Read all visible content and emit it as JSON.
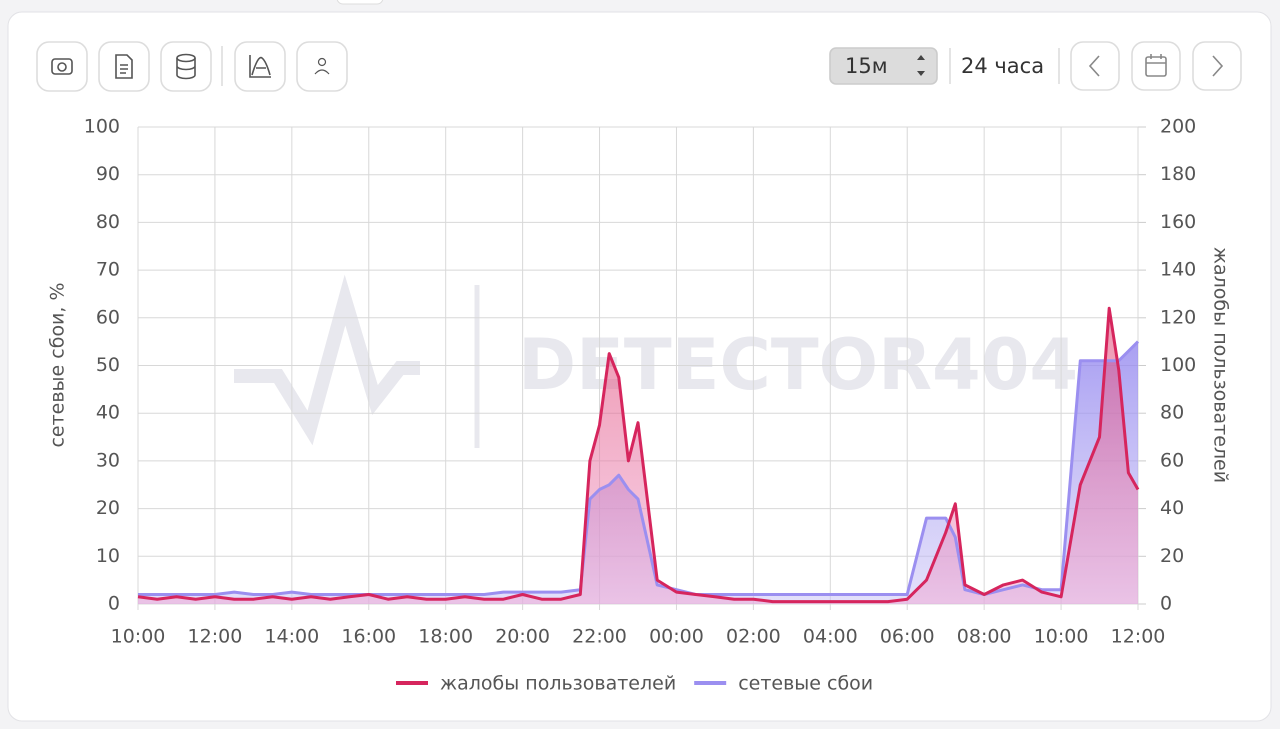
{
  "toolbar": {
    "interval": "15м",
    "range": "24 часа"
  },
  "watermark": "DETECTOR404",
  "chart_data": {
    "type": "line",
    "y_label": "сетевые сбои, %",
    "y2_label": "жалобы пользователей",
    "x": [
      0,
      0.5,
      1,
      1.5,
      2,
      2.5,
      3,
      3.5,
      4,
      4.5,
      5,
      5.5,
      6,
      6.5,
      7,
      7.5,
      8,
      8.5,
      9,
      9.5,
      10,
      10.5,
      11,
      11.5,
      11.75,
      12,
      12.25,
      12.5,
      12.75,
      13,
      13.5,
      14,
      14.5,
      15,
      15.5,
      16,
      16.5,
      17,
      17.5,
      18,
      18.5,
      19,
      19.5,
      20,
      20.5,
      21,
      21.25,
      21.5,
      22,
      22.5,
      23,
      23.5,
      24,
      24.5,
      25,
      25.25,
      25.5,
      25.75,
      26
    ],
    "xlim": [
      0,
      26
    ],
    "xticks": [
      {
        "value": 0,
        "label": "10:00"
      },
      {
        "value": 2,
        "label": "12:00"
      },
      {
        "value": 4,
        "label": "14:00"
      },
      {
        "value": 6,
        "label": "16:00"
      },
      {
        "value": 8,
        "label": "18:00"
      },
      {
        "value": 10,
        "label": "20:00"
      },
      {
        "value": 12,
        "label": "22:00"
      },
      {
        "value": 14,
        "label": "00:00"
      },
      {
        "value": 16,
        "label": "02:00"
      },
      {
        "value": 18,
        "label": "04:00"
      },
      {
        "value": 20,
        "label": "06:00"
      },
      {
        "value": 22,
        "label": "08:00"
      },
      {
        "value": 24,
        "label": "10:00"
      },
      {
        "value": 26,
        "label": "12:00"
      }
    ],
    "ylim": [
      0,
      100
    ],
    "yticks": [
      0,
      10,
      20,
      30,
      40,
      50,
      60,
      70,
      80,
      90,
      100
    ],
    "y2lim": [
      0,
      200
    ],
    "y2ticks": [
      0,
      20,
      40,
      60,
      80,
      100,
      120,
      140,
      160,
      180,
      200
    ],
    "grid": true,
    "series": [
      {
        "name": "жалобы пользователей",
        "color": "#d6255d",
        "axis": "y2",
        "values": [
          3,
          2,
          3,
          2,
          3,
          2,
          2,
          3,
          2,
          3,
          2,
          3,
          4,
          2,
          3,
          2,
          2,
          3,
          2,
          2,
          4,
          2,
          2,
          4,
          60,
          75,
          105,
          95,
          60,
          76,
          10,
          5,
          4,
          3,
          2,
          2,
          1,
          1,
          1,
          1,
          1,
          1,
          1,
          2,
          10,
          30,
          42,
          8,
          4,
          8,
          10,
          5,
          3,
          50,
          70,
          124,
          98,
          55,
          48
        ]
      },
      {
        "name": "сетевые сбои",
        "color": "#9b8ff0",
        "values": [
          2,
          2,
          2,
          2,
          2,
          2.5,
          2,
          2,
          2.5,
          2,
          2,
          2,
          2,
          2,
          2,
          2,
          2,
          2,
          2,
          2.5,
          2.5,
          2.5,
          2.5,
          3,
          22,
          24,
          25,
          27,
          24,
          22,
          4,
          3,
          2,
          2,
          2,
          2,
          2,
          2,
          2,
          2,
          2,
          2,
          2,
          2,
          18,
          18,
          14,
          3,
          2,
          3,
          4,
          3,
          3,
          51,
          51,
          51,
          51,
          53,
          55
        ]
      }
    ]
  }
}
